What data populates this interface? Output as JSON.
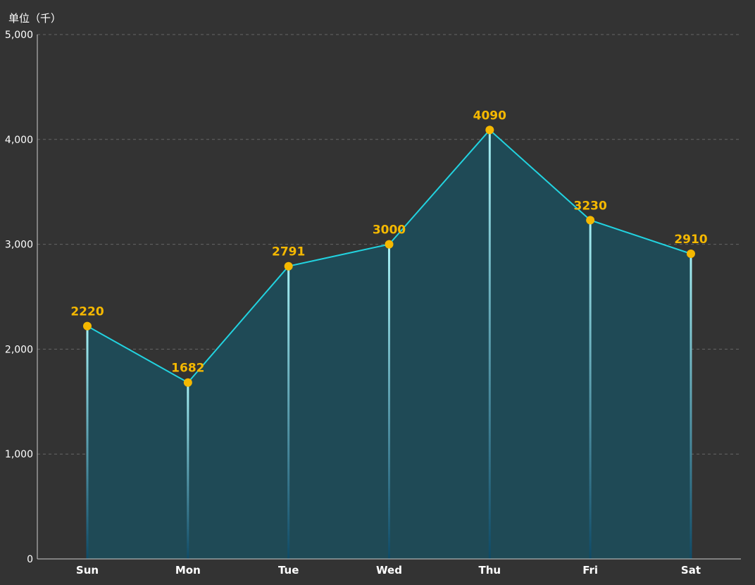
{
  "chart_data": {
    "type": "area",
    "unit_label": "单位（千）",
    "categories": [
      "Sun",
      "Mon",
      "Tue",
      "Wed",
      "Thu",
      "Fri",
      "Sat"
    ],
    "values": [
      2220,
      1682,
      2791,
      3000,
      4090,
      3230,
      2910
    ],
    "data_labels": [
      "2220",
      "1682",
      "2791",
      "3000",
      "4090",
      "3230",
      "2910"
    ],
    "yticks": [
      "0",
      "1,000",
      "2,000",
      "3,000",
      "4,000",
      "5,000"
    ],
    "ylim": [
      0,
      5000
    ],
    "grid": true,
    "colors": {
      "background": "#333333",
      "line": "#22d3e0",
      "area": "#1f4a56",
      "marker": "#f5b800",
      "data_label": "#f5b800",
      "axis": "#cccccc",
      "grid": "#666666",
      "stem_top": "#a6f0f4",
      "stem_bottom": "#0f4a66"
    }
  }
}
